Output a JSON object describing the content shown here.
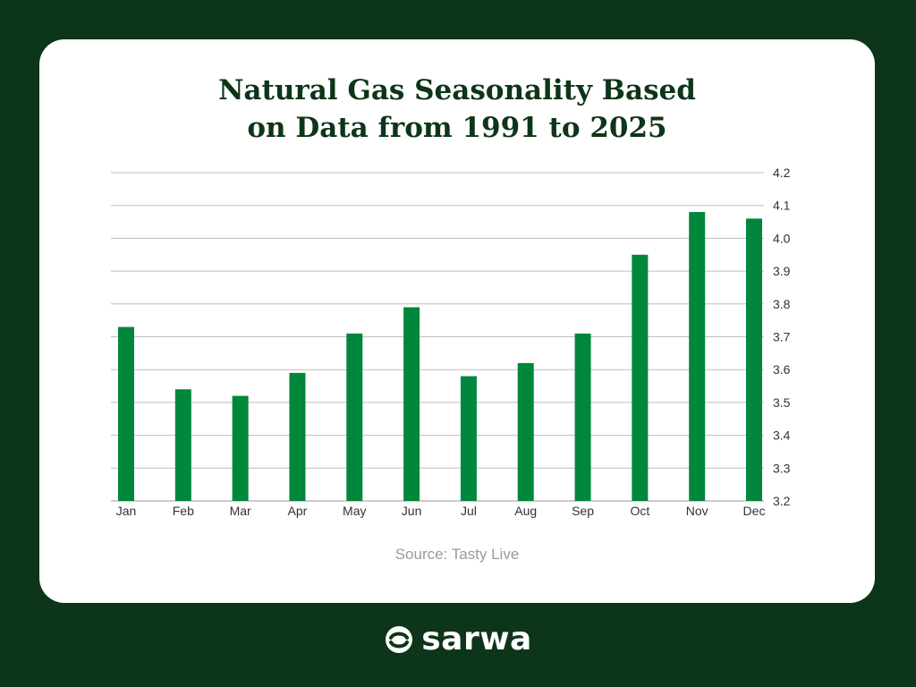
{
  "chart_data": {
    "type": "bar",
    "title_lines": [
      "Natural Gas Seasonality Based",
      "on Data from 1991 to 2025"
    ],
    "categories": [
      "Jan",
      "Feb",
      "Mar",
      "Apr",
      "May",
      "Jun",
      "Jul",
      "Aug",
      "Sep",
      "Oct",
      "Nov",
      "Dec"
    ],
    "values": [
      3.73,
      3.54,
      3.52,
      3.59,
      3.71,
      3.79,
      3.58,
      3.62,
      3.71,
      3.95,
      4.08,
      4.06
    ],
    "ylim": [
      3.2,
      4.2
    ],
    "yticks": [
      "3.2",
      "3.3",
      "3.4",
      "3.5",
      "3.6",
      "3.7",
      "3.8",
      "3.9",
      "4.0",
      "4.1",
      "4.2"
    ],
    "y_axis_side": "right",
    "grid": true,
    "bar_color": "#00873c",
    "xlabel": "",
    "ylabel": ""
  },
  "source": "Source: Tasty Live",
  "brand": {
    "name": "sarwa",
    "logo_icon": "sarwa-logo-icon",
    "background_color": "#0d3519"
  }
}
